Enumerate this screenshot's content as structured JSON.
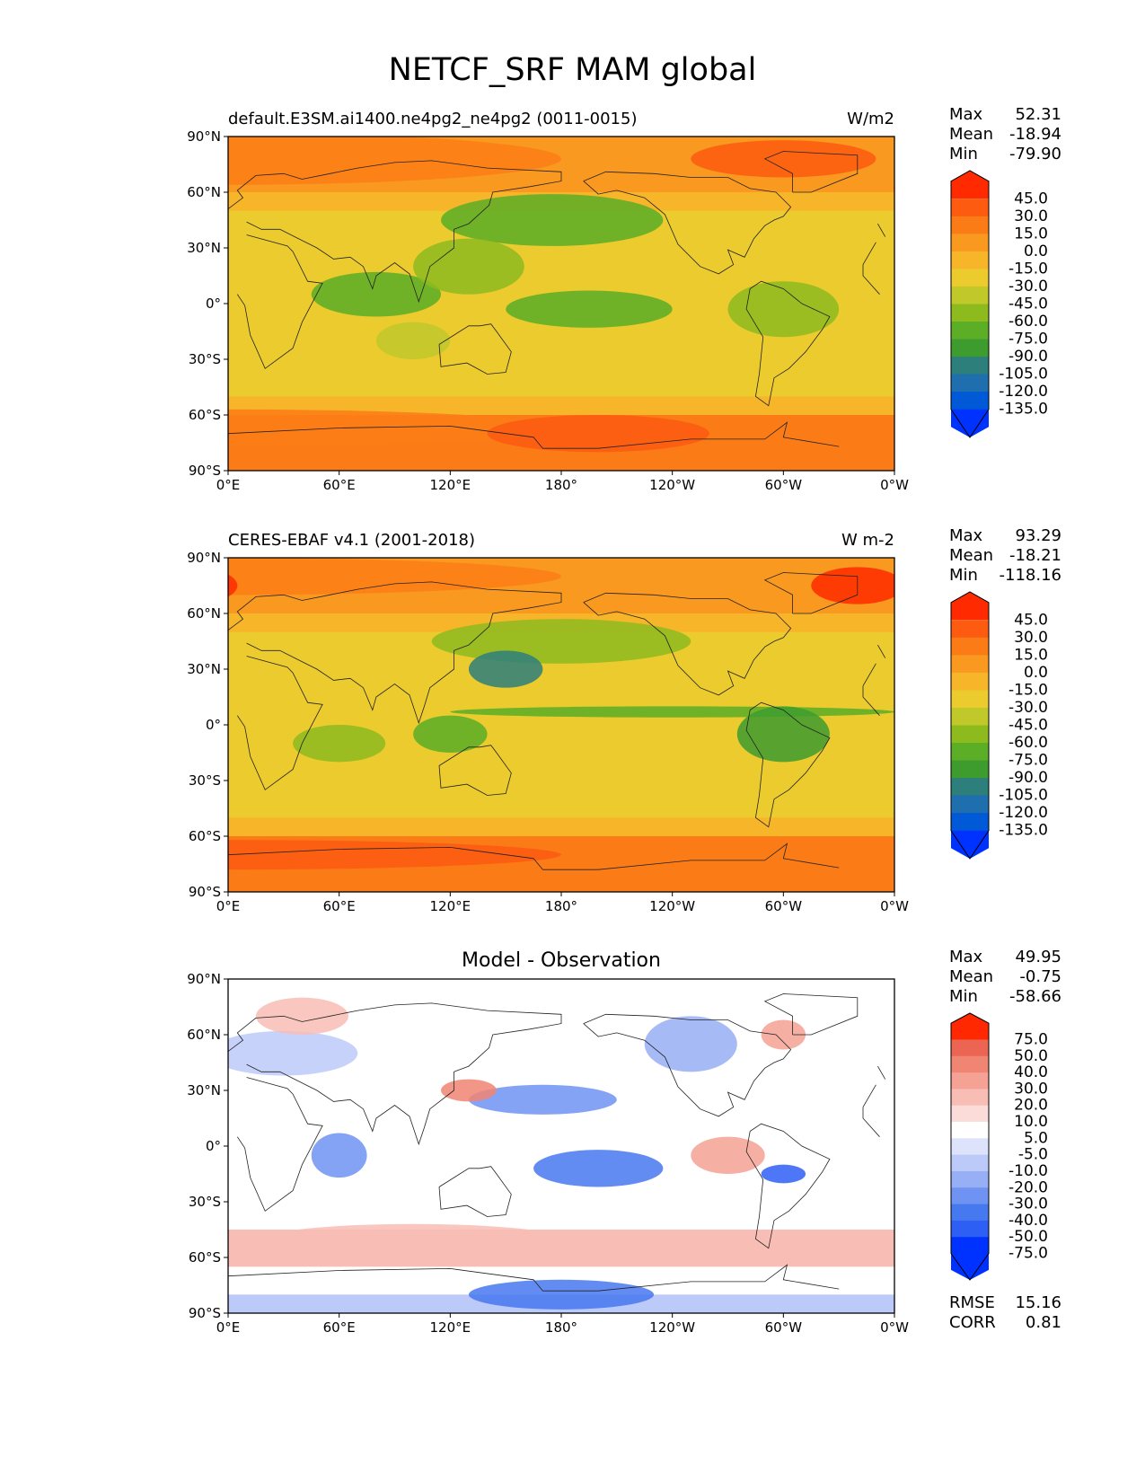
{
  "suptitle": "NETCF_SRF MAM global",
  "chart_data": [
    {
      "type": "heatmap",
      "panel": "test",
      "title_left": "default.E3SM.ai1400.ne4pg2_ne4pg2 (0011-0015)",
      "title_right": "W/m2",
      "stats": {
        "max_label": "Max",
        "max": "52.31",
        "mean_label": "Mean",
        "mean": "-18.94",
        "min_label": "Min",
        "min": "-79.90"
      },
      "colorbar_ticks": [
        "45.0",
        "30.0",
        "15.0",
        "0.0",
        "-15.0",
        "-30.0",
        "-45.0",
        "-60.0",
        "-75.0",
        "-90.0",
        "-105.0",
        "-120.0",
        "-135.0"
      ],
      "xticks": [
        "0°E",
        "60°E",
        "120°E",
        "180°",
        "120°W",
        "60°W",
        "0°W"
      ],
      "yticks": [
        "90°N",
        "60°N",
        "30°N",
        "0°",
        "30°S",
        "60°S",
        "90°S"
      ],
      "field_desc": "Green (-30 to -75) over mid-latitude North Pacific, tropical Indian Ocean and Pacific ITCZ; yellow-orange elsewhere; orange-red (15 to 45) over polar latitudes and Southern Ocean."
    },
    {
      "type": "heatmap",
      "panel": "reference",
      "title_left": "CERES-EBAF v4.1 (2001-2018)",
      "title_right": "W m-2",
      "stats": {
        "max_label": "Max",
        "max": "93.29",
        "mean_label": "Mean",
        "mean": "-18.21",
        "min_label": "Min",
        "min": "-118.16"
      },
      "colorbar_ticks": [
        "45.0",
        "30.0",
        "15.0",
        "0.0",
        "-15.0",
        "-30.0",
        "-45.0",
        "-60.0",
        "-75.0",
        "-90.0",
        "-105.0",
        "-120.0",
        "-135.0"
      ],
      "xticks": [
        "0°E",
        "60°E",
        "120°E",
        "180°",
        "120°W",
        "60°W",
        "0°W"
      ],
      "yticks": [
        "90°N",
        "60°N",
        "30°N",
        "0°",
        "30°S",
        "60°S",
        "90°S"
      ],
      "field_desc": "Green band along the Pacific ITCZ and North Pacific storm track, darkest near East China Sea; yellow subtropics; red along Antarctic coast."
    },
    {
      "type": "heatmap",
      "panel": "difference",
      "title_center": "Model - Observation",
      "stats": {
        "max_label": "Max",
        "max": "49.95",
        "mean_label": "Mean",
        "mean": "-0.75",
        "min_label": "Min",
        "min": "-58.66"
      },
      "colorbar_ticks": [
        "75.0",
        "50.0",
        "40.0",
        "30.0",
        "20.0",
        "10.0",
        "5.0",
        "-5.0",
        "-10.0",
        "-20.0",
        "-30.0",
        "-40.0",
        "-50.0",
        "-75.0"
      ],
      "metrics": {
        "rmse_label": "RMSE",
        "rmse": "15.16",
        "corr_label": "CORR",
        "corr": "0.81"
      },
      "xticks": [
        "0°E",
        "60°E",
        "120°E",
        "180°",
        "120°W",
        "60°W",
        "0°W"
      ],
      "yticks": [
        "90°N",
        "60°N",
        "30°N",
        "0°",
        "30°S",
        "60°S",
        "90°S"
      ],
      "field_desc": "Blue negative biases over central Pacific south of equator, Indian Ocean, East Pacific near South America and North Pacific; red positive biases in Southern Ocean band, North Pacific near Japan and Arctic."
    }
  ],
  "colors": {
    "diverging_ncl": [
      "#0032FF",
      "#2E5FF5",
      "#4678F0",
      "#6E93F2",
      "#96AFF5",
      "#BCCAF9",
      "#DCE3FB",
      "#FFFFFF",
      "#FBDCD8",
      "#F8BDB5",
      "#F5A193",
      "#F08573",
      "#EC6452",
      "#FF2800"
    ],
    "netcf_scale": [
      "#0032FF",
      "#0059D6",
      "#1F6FAE",
      "#2D7F7B",
      "#3E9C2F",
      "#5BAE26",
      "#8DBB1E",
      "#C0C82A",
      "#ECCB2E",
      "#F7B52A",
      "#FA9920",
      "#FB7C16",
      "#FC5B10",
      "#FF2A00"
    ]
  }
}
